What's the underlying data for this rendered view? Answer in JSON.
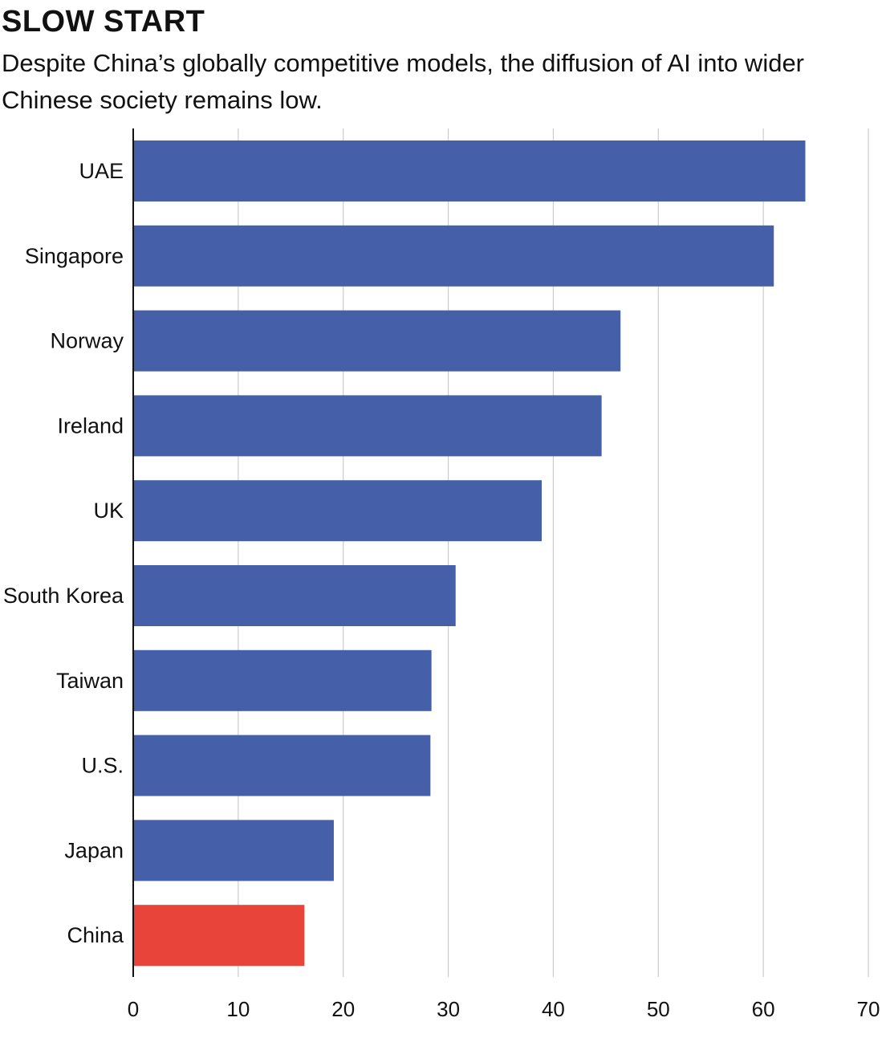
{
  "header": {
    "title": "SLOW START",
    "subtitle": "Despite China’s globally competitive models, the diffusion of AI into wider Chinese society remains low."
  },
  "colors": {
    "bar": "#4560a8",
    "highlight": "#e8443a",
    "grid": "#cccccc",
    "axis": "#111111"
  },
  "chart_data": {
    "type": "bar",
    "orientation": "horizontal",
    "title": "SLOW START",
    "subtitle": "Despite China’s globally competitive models, the diffusion of AI into wider Chinese society remains low.",
    "categories": [
      "UAE",
      "Singapore",
      "Norway",
      "Ireland",
      "UK",
      "South Korea",
      "Taiwan",
      "U.S.",
      "Japan",
      "China"
    ],
    "values": [
      64.0,
      61.0,
      46.4,
      44.6,
      38.9,
      30.7,
      28.4,
      28.3,
      19.1,
      16.3
    ],
    "highlight": "China",
    "xlim": [
      0,
      70
    ],
    "xticks": [
      0,
      10,
      20,
      30,
      40,
      50,
      60,
      70
    ],
    "grid": true,
    "legend": "none"
  }
}
